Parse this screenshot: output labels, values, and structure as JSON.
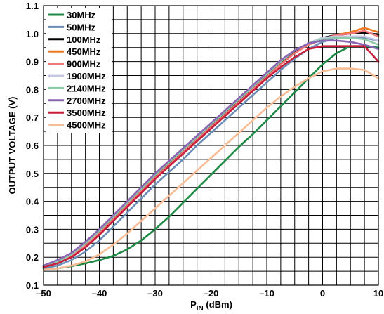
{
  "chart_data": {
    "type": "line",
    "xlabel_main": "P",
    "xlabel_sub": "IN",
    "xlabel_unit": " (dBm)",
    "ylabel": "OUTPUT VOLTAGE (V)",
    "xlim": [
      -50,
      10
    ],
    "ylim": [
      0.1,
      1.1
    ],
    "x_ticks": [
      -50,
      -40,
      -30,
      -20,
      -10,
      0,
      10
    ],
    "x_tick_labels": [
      "–50",
      "–40",
      "–30",
      "–20",
      "–10",
      "0",
      "10"
    ],
    "y_ticks": [
      0.1,
      0.2,
      0.3,
      0.4,
      0.5,
      0.6,
      0.7,
      0.8,
      0.9,
      1.0,
      1.1
    ],
    "y_tick_labels": [
      "0.1",
      "0.2",
      "0.3",
      "0.4",
      "0.5",
      "0.6",
      "0.7",
      "0.8",
      "0.9",
      "1.0",
      "1.1"
    ],
    "grid": true,
    "legend_position": "top-left",
    "x": [
      -50,
      -47.5,
      -45,
      -42.5,
      -40,
      -37.5,
      -35,
      -32.5,
      -30,
      -27.5,
      -25,
      -22.5,
      -20,
      -17.5,
      -15,
      -12.5,
      -10,
      -7.5,
      -5,
      -2.5,
      0,
      2.5,
      5,
      7.5,
      10
    ],
    "series": [
      {
        "name": "30MHz",
        "color": "#1e8a45",
        "values": [
          0.155,
          0.16,
          0.168,
          0.178,
          0.19,
          0.205,
          0.228,
          0.26,
          0.3,
          0.345,
          0.395,
          0.445,
          0.495,
          0.545,
          0.595,
          0.64,
          0.69,
          0.74,
          0.79,
          0.84,
          0.89,
          0.93,
          0.955,
          0.955,
          0.95
        ]
      },
      {
        "name": "50MHz",
        "color": "#6c8cb8",
        "values": [
          0.16,
          0.17,
          0.19,
          0.22,
          0.26,
          0.31,
          0.36,
          0.41,
          0.46,
          0.505,
          0.55,
          0.6,
          0.645,
          0.69,
          0.735,
          0.78,
          0.825,
          0.87,
          0.91,
          0.945,
          0.97,
          0.985,
          0.99,
          0.985,
          0.975
        ]
      },
      {
        "name": "100MHz",
        "color": "#000000",
        "values": [
          0.165,
          0.18,
          0.205,
          0.24,
          0.285,
          0.34,
          0.39,
          0.44,
          0.49,
          0.535,
          0.58,
          0.625,
          0.67,
          0.715,
          0.76,
          0.805,
          0.85,
          0.895,
          0.935,
          0.965,
          0.985,
          0.995,
          1.0,
          1.005,
          0.995
        ]
      },
      {
        "name": "450MHz",
        "color": "#f07820",
        "values": [
          0.165,
          0.18,
          0.205,
          0.24,
          0.285,
          0.335,
          0.385,
          0.435,
          0.485,
          0.53,
          0.575,
          0.62,
          0.665,
          0.71,
          0.755,
          0.8,
          0.845,
          0.89,
          0.93,
          0.96,
          0.98,
          0.995,
          1.005,
          1.02,
          1.005
        ]
      },
      {
        "name": "900MHz",
        "color": "#f07878",
        "values": [
          0.165,
          0.18,
          0.205,
          0.24,
          0.285,
          0.335,
          0.385,
          0.435,
          0.485,
          0.53,
          0.575,
          0.62,
          0.665,
          0.71,
          0.755,
          0.8,
          0.845,
          0.89,
          0.93,
          0.96,
          0.98,
          0.995,
          1.0,
          1.01,
          0.99
        ]
      },
      {
        "name": "1900MHz",
        "color": "#c8c8e6",
        "values": [
          0.168,
          0.185,
          0.21,
          0.25,
          0.295,
          0.345,
          0.395,
          0.445,
          0.495,
          0.54,
          0.585,
          0.63,
          0.675,
          0.72,
          0.765,
          0.81,
          0.855,
          0.9,
          0.94,
          0.965,
          0.985,
          0.99,
          0.99,
          0.99,
          0.975
        ]
      },
      {
        "name": "2140MHz",
        "color": "#8ccaa8",
        "values": [
          0.168,
          0.185,
          0.21,
          0.25,
          0.295,
          0.345,
          0.395,
          0.445,
          0.495,
          0.54,
          0.585,
          0.63,
          0.675,
          0.72,
          0.765,
          0.81,
          0.855,
          0.9,
          0.94,
          0.965,
          0.98,
          0.985,
          0.985,
          0.98,
          0.96
        ]
      },
      {
        "name": "2700MHz",
        "color": "#8c64b4",
        "values": [
          0.17,
          0.19,
          0.215,
          0.255,
          0.3,
          0.35,
          0.4,
          0.45,
          0.5,
          0.545,
          0.59,
          0.635,
          0.68,
          0.725,
          0.77,
          0.815,
          0.86,
          0.905,
          0.94,
          0.965,
          0.975,
          0.975,
          0.97,
          0.96,
          0.945
        ]
      },
      {
        "name": "3500MHz",
        "color": "#c81e3c",
        "values": [
          0.165,
          0.178,
          0.2,
          0.235,
          0.28,
          0.33,
          0.38,
          0.43,
          0.48,
          0.525,
          0.57,
          0.615,
          0.66,
          0.705,
          0.75,
          0.795,
          0.84,
          0.88,
          0.915,
          0.945,
          0.955,
          0.955,
          0.955,
          0.955,
          0.9
        ]
      },
      {
        "name": "4500MHz",
        "color": "#f8bc96",
        "values": [
          0.155,
          0.16,
          0.17,
          0.185,
          0.21,
          0.245,
          0.285,
          0.33,
          0.375,
          0.42,
          0.465,
          0.51,
          0.555,
          0.6,
          0.645,
          0.69,
          0.735,
          0.775,
          0.81,
          0.84,
          0.865,
          0.875,
          0.875,
          0.87,
          0.84
        ]
      }
    ]
  }
}
